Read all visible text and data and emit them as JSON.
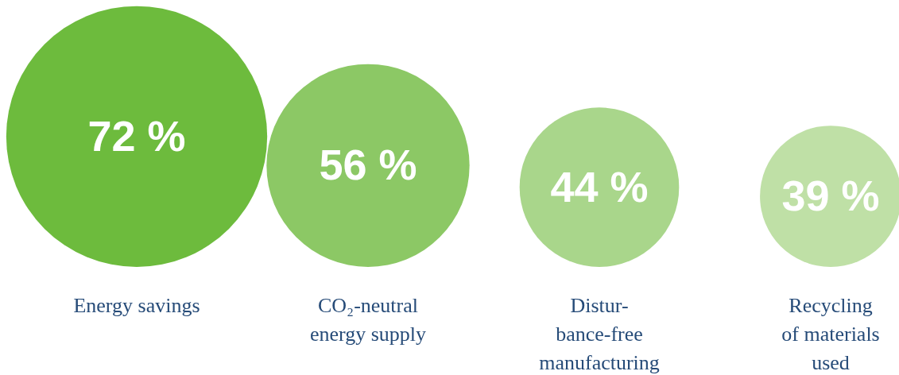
{
  "chart_data": {
    "type": "other",
    "categories": [
      "Energy savings",
      "CO₂-neutral\nenergy supply",
      "Distur-\nbance-free\nmanufacturing",
      "Recycling\nof materials\nused"
    ],
    "values": [
      72,
      56,
      44,
      39
    ],
    "colors": [
      "#6dbb3d",
      "#8cc865",
      "#a9d68b",
      "#bfe0a6"
    ],
    "value_labels": [
      "72 %",
      "56 %",
      "44 %",
      "39 %"
    ]
  }
}
